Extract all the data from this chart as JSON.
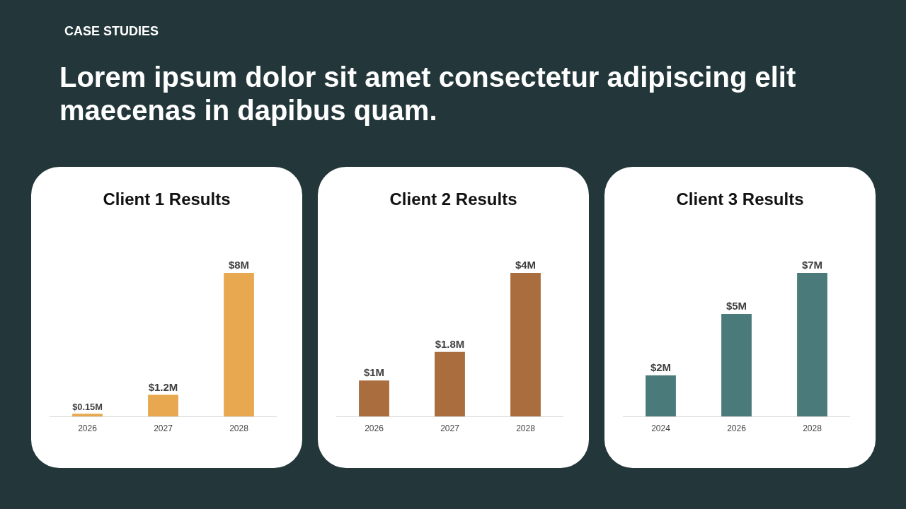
{
  "chart_data": [
    {
      "type": "other",
      "annotations": [
        "CASE STUDIES"
      ],
      "title": "Lorem ipsum dolor sit amet consectetur adipiscing elit maecenas in dapibus quam."
    },
    {
      "type": "bar",
      "title": "Client 1 Results",
      "categories": [
        "2026",
        "2027",
        "2028"
      ],
      "values": [
        0.15,
        1.2,
        8
      ],
      "value_labels": [
        "$0.15M",
        "$1.2M",
        "$8M"
      ],
      "color": "#e8a850",
      "tick_labels": "x"
    },
    {
      "type": "bar",
      "title": "Client 2 Results",
      "categories": [
        "2026",
        "2027",
        "2028"
      ],
      "values": [
        1,
        1.8,
        4
      ],
      "value_labels": [
        "$1M",
        "$1.8M",
        "$4M"
      ],
      "color": "#a96d3e",
      "tick_labels": "x"
    },
    {
      "type": "bar",
      "title": "Client 3 Results",
      "categories": [
        "2024",
        "2026",
        "2028"
      ],
      "values": [
        2,
        5,
        7
      ],
      "value_labels": [
        "$2M",
        "$5M",
        "$7M"
      ],
      "color": "#4a7a79",
      "tick_labels": "x"
    }
  ]
}
